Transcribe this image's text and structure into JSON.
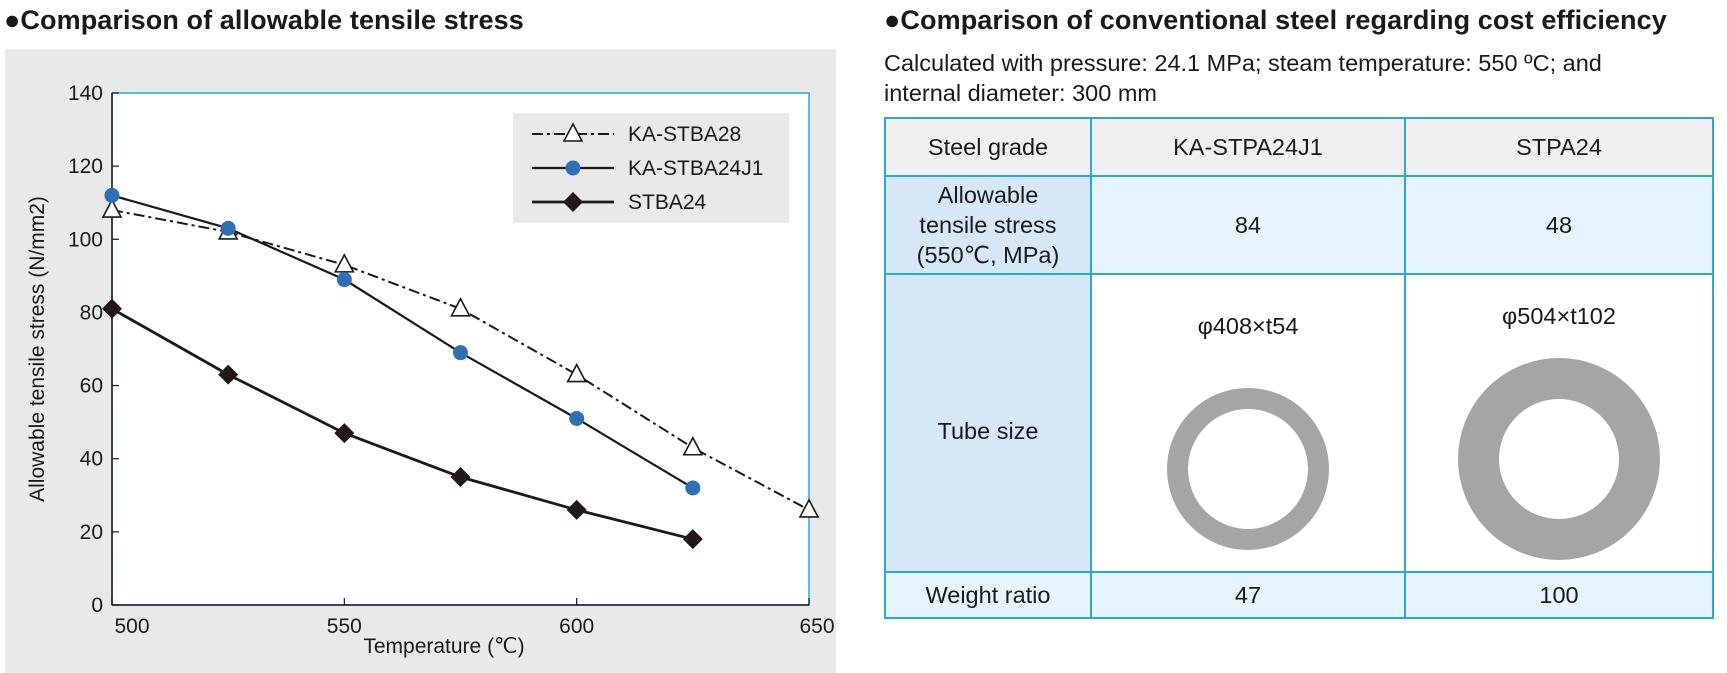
{
  "left_heading": "●Comparison of allowable tensile stress",
  "right_heading": "●Comparison of conventional steel regarding cost efficiency",
  "note_line1": "Calculated with pressure: 24.1 MPa; steam temperature: 550 ºC; and",
  "note_line2": "internal diameter: 300 mm",
  "chart_data": {
    "type": "line",
    "title": "Comparison of allowable tensile stress",
    "xlabel": "Temperature (℃)",
    "ylabel": "Allowable tensile stress (N/mm2)",
    "xlim": [
      500,
      650
    ],
    "ylim": [
      0,
      140
    ],
    "xticks": [
      500,
      550,
      600,
      650
    ],
    "yticks": [
      0,
      20,
      40,
      60,
      80,
      100,
      120,
      140
    ],
    "grid": false,
    "legend_position": "top-right",
    "series": [
      {
        "name": "KA-STBA28",
        "style": "dash-dot",
        "marker": "triangle-open",
        "color": "#1a1a1a",
        "x": [
          500,
          525,
          550,
          575,
          600,
          625,
          650
        ],
        "y": [
          108,
          102,
          93,
          81,
          63,
          43,
          26
        ]
      },
      {
        "name": "KA-STBA24J1",
        "style": "solid",
        "marker": "circle",
        "color": "#1a1a1a",
        "marker_color": "#2f6fba",
        "x": [
          500,
          525,
          550,
          575,
          600,
          625
        ],
        "y": [
          112,
          103,
          89,
          69,
          51,
          32
        ]
      },
      {
        "name": "STBA24",
        "style": "solid-thick",
        "marker": "diamond",
        "color": "#1a1a1a",
        "x": [
          500,
          525,
          550,
          575,
          600,
          625
        ],
        "y": [
          81,
          63,
          47,
          35,
          26,
          18
        ]
      }
    ]
  },
  "table": {
    "col_header": "Steel grade",
    "grade_a": "KA-STPA24J1",
    "grade_b": "STPA24",
    "stress_label_1": "Allowable",
    "stress_label_2": "tensile stress",
    "stress_label_3": "(550℃, MPa)",
    "stress_a": "84",
    "stress_b": "48",
    "size_label": "Tube size",
    "size_a": "φ408×t54",
    "size_b": "φ504×t102",
    "weight_label": "Weight ratio",
    "weight_a": "47",
    "weight_b": "100"
  },
  "colors": {
    "table_border": "#2aa7e0",
    "ring_fill": "#a5a5a5",
    "marker_blue": "#2f6fba",
    "panel_bg": "#e8e9e9"
  }
}
